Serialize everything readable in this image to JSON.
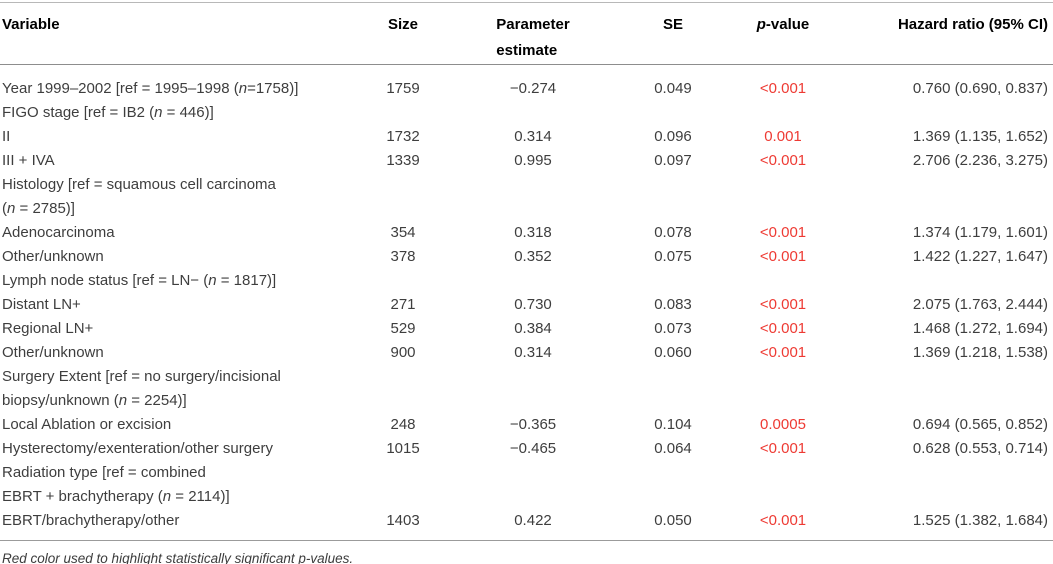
{
  "theme": {
    "significant_red": "#ee3a33",
    "body_text": "#3e3e3e",
    "header_text": "#000000",
    "rule_gray": "#9b9b9b",
    "background": "#ffffff"
  },
  "table": {
    "columns": [
      {
        "key": "variable",
        "label": "Variable"
      },
      {
        "key": "size",
        "label": "Size"
      },
      {
        "key": "estimate",
        "label": "Parameter\nestimate"
      },
      {
        "key": "se",
        "label": "SE"
      },
      {
        "key": "p",
        "label_italic": "p",
        "label_suffix": "-value"
      },
      {
        "key": "hr",
        "label": "Hazard ratio (95% CI)"
      }
    ],
    "rows": [
      {
        "variable": "Year 1999–2002 [ref = 1995–1998 (n=1758)]",
        "size": "1759",
        "estimate": "−0.274",
        "se": "0.049",
        "p": "<0.001",
        "hr": "0.760 (0.690, 0.837)"
      },
      {
        "variable": "FIGO stage [ref = IB2 (n = 446)]",
        "size": "",
        "estimate": "",
        "se": "",
        "p": "",
        "hr": ""
      },
      {
        "variable": "II",
        "size": "1732",
        "estimate": "0.314",
        "se": "0.096",
        "p": "0.001",
        "hr": "1.369 (1.135, 1.652)"
      },
      {
        "variable": "III + IVA",
        "size": "1339",
        "estimate": "0.995",
        "se": "0.097",
        "p": "<0.001",
        "hr": "2.706 (2.236, 3.275)"
      },
      {
        "variable": "Histology [ref = squamous cell carcinoma\n(n = 2785)]",
        "size": "",
        "estimate": "",
        "se": "",
        "p": "",
        "hr": ""
      },
      {
        "variable": "Adenocarcinoma",
        "size": "354",
        "estimate": "0.318",
        "se": "0.078",
        "p": "<0.001",
        "hr": "1.374 (1.179, 1.601)"
      },
      {
        "variable": "Other/unknown",
        "size": "378",
        "estimate": "0.352",
        "se": "0.075",
        "p": "<0.001",
        "hr": "1.422 (1.227, 1.647)"
      },
      {
        "variable": "Lymph node status [ref = LN− (n = 1817)]",
        "size": "",
        "estimate": "",
        "se": "",
        "p": "",
        "hr": ""
      },
      {
        "variable": "Distant LN+",
        "size": "271",
        "estimate": "0.730",
        "se": "0.083",
        "p": "<0.001",
        "hr": "2.075 (1.763, 2.444)"
      },
      {
        "variable": "Regional LN+",
        "size": "529",
        "estimate": "0.384",
        "se": "0.073",
        "p": "<0.001",
        "hr": "1.468 (1.272, 1.694)"
      },
      {
        "variable": "Other/unknown",
        "size": "900",
        "estimate": "0.314",
        "se": "0.060",
        "p": "<0.001",
        "hr": "1.369 (1.218, 1.538)"
      },
      {
        "variable": "Surgery Extent [ref = no surgery/incisional\nbiopsy/unknown (n = 2254)]",
        "size": "",
        "estimate": "",
        "se": "",
        "p": "",
        "hr": ""
      },
      {
        "variable": "Local Ablation or excision",
        "size": "248",
        "estimate": "−0.365",
        "se": "0.104",
        "p": "0.0005",
        "hr": "0.694 (0.565, 0.852)"
      },
      {
        "variable": "Hysterectomy/exenteration/other surgery",
        "size": "1015",
        "estimate": "−0.465",
        "se": "0.064",
        "p": "<0.001",
        "hr": "0.628 (0.553, 0.714)"
      },
      {
        "variable": "Radiation type [ref = combined\nEBRT + brachytherapy (n = 2114)]",
        "size": "",
        "estimate": "",
        "se": "",
        "p": "",
        "hr": ""
      },
      {
        "variable": "EBRT/brachytherapy/other",
        "size": "1403",
        "estimate": "0.422",
        "se": "0.050",
        "p": "<0.001",
        "hr": "1.525 (1.382, 1.684)"
      }
    ],
    "footnote": "Red color used to highlight statistically significant p-values."
  }
}
